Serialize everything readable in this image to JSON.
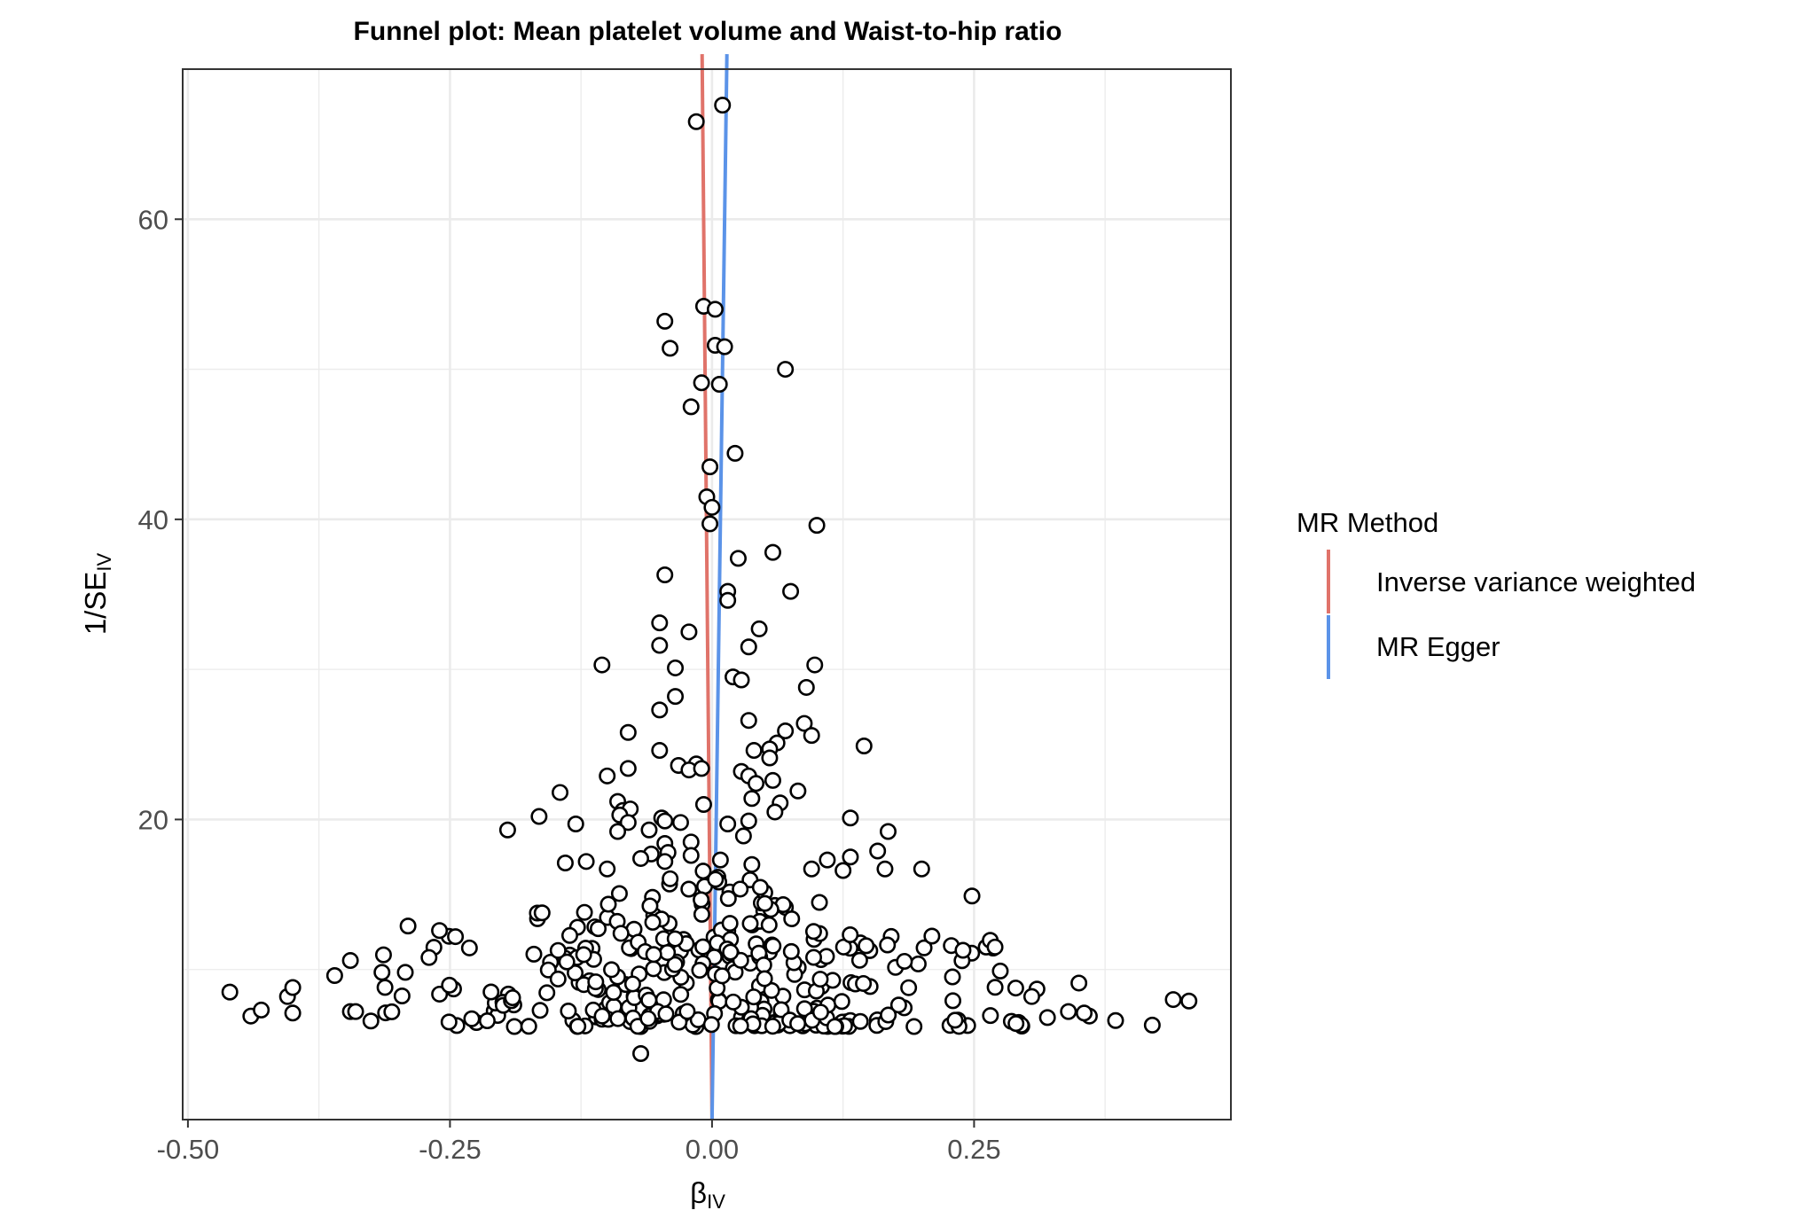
{
  "chart_data": {
    "type": "scatter",
    "title": "Funnel plot: Mean platelet volume and Waist-to-hip ratio",
    "xlabel": {
      "main": "β",
      "sub": "IV"
    },
    "ylabel": {
      "main": "1/SE",
      "sub": "IV"
    },
    "xlim": [
      -0.505,
      0.495
    ],
    "ylim": [
      0,
      70
    ],
    "x_ticks": [
      -0.5,
      -0.25,
      0,
      0.25
    ],
    "x_tick_labels": [
      "-0.50",
      "-0.25",
      "0.00",
      "0.25"
    ],
    "y_ticks": [
      20,
      40,
      60
    ],
    "y_tick_labels": [
      "20",
      "40",
      "60"
    ],
    "grid": true,
    "legend": {
      "title": "MR Method",
      "position": "right",
      "entries": [
        {
          "label": "Inverse variance weighted",
          "color": "#e0736a",
          "slope": -0.002
        },
        {
          "label": "MR Egger",
          "color": "#5b93e8",
          "slope": 0.003
        }
      ]
    },
    "points": [
      [
        0.01,
        67.6
      ],
      [
        -0.015,
        66.5
      ],
      [
        -0.008,
        54.2
      ],
      [
        0.003,
        54.0
      ],
      [
        -0.045,
        53.2
      ],
      [
        0.003,
        51.6
      ],
      [
        0.012,
        51.5
      ],
      [
        -0.04,
        51.4
      ],
      [
        0.07,
        50.0
      ],
      [
        -0.01,
        49.1
      ],
      [
        0.007,
        49.0
      ],
      [
        -0.02,
        47.5
      ],
      [
        0.022,
        44.4
      ],
      [
        -0.002,
        43.5
      ],
      [
        -0.005,
        41.5
      ],
      [
        0.0,
        40.8
      ],
      [
        -0.002,
        39.7
      ],
      [
        0.1,
        39.6
      ],
      [
        0.058,
        37.8
      ],
      [
        0.025,
        37.4
      ],
      [
        -0.045,
        36.3
      ],
      [
        0.015,
        35.2
      ],
      [
        0.015,
        34.6
      ],
      [
        0.075,
        35.2
      ],
      [
        -0.05,
        33.1
      ],
      [
        -0.022,
        32.5
      ],
      [
        0.045,
        32.7
      ],
      [
        0.035,
        31.5
      ],
      [
        -0.05,
        31.6
      ],
      [
        -0.105,
        30.3
      ],
      [
        -0.035,
        30.1
      ],
      [
        0.098,
        30.3
      ],
      [
        0.02,
        29.5
      ],
      [
        0.028,
        29.3
      ],
      [
        0.09,
        28.8
      ],
      [
        -0.035,
        28.2
      ],
      [
        -0.05,
        27.3
      ],
      [
        0.035,
        26.6
      ],
      [
        0.088,
        26.4
      ],
      [
        0.07,
        25.9
      ],
      [
        -0.08,
        25.8
      ],
      [
        0.095,
        25.6
      ],
      [
        0.062,
        25.1
      ],
      [
        0.055,
        24.7
      ],
      [
        0.145,
        24.9
      ],
      [
        0.04,
        24.6
      ],
      [
        -0.05,
        24.6
      ],
      [
        0.055,
        24.1
      ],
      [
        -0.015,
        23.7
      ],
      [
        -0.032,
        23.6
      ],
      [
        -0.08,
        23.4
      ],
      [
        -0.022,
        23.3
      ],
      [
        -0.01,
        23.4
      ],
      [
        0.028,
        23.2
      ],
      [
        0.035,
        22.9
      ],
      [
        -0.1,
        22.9
      ],
      [
        0.042,
        22.4
      ],
      [
        0.058,
        22.6
      ],
      [
        -0.145,
        21.8
      ],
      [
        0.082,
        21.9
      ],
      [
        0.038,
        21.4
      ],
      [
        -0.09,
        21.2
      ],
      [
        -0.008,
        21.0
      ],
      [
        0.065,
        21.1
      ],
      [
        -0.085,
        20.6
      ],
      [
        0.06,
        20.5
      ],
      [
        -0.078,
        20.7
      ],
      [
        -0.165,
        20.2
      ],
      [
        -0.088,
        20.3
      ],
      [
        0.132,
        20.1
      ],
      [
        -0.048,
        20.1
      ],
      [
        -0.045,
        19.9
      ],
      [
        -0.08,
        19.8
      ],
      [
        -0.03,
        19.8
      ],
      [
        0.035,
        19.9
      ],
      [
        -0.13,
        19.7
      ],
      [
        0.015,
        19.7
      ],
      [
        -0.195,
        19.3
      ],
      [
        -0.06,
        19.3
      ],
      [
        -0.09,
        19.2
      ],
      [
        0.168,
        19.2
      ],
      [
        0.03,
        18.9
      ],
      [
        -0.045,
        18.4
      ],
      [
        -0.02,
        18.5
      ],
      [
        -0.042,
        17.8
      ],
      [
        0.158,
        17.9
      ],
      [
        -0.058,
        17.7
      ],
      [
        -0.068,
        17.4
      ],
      [
        -0.02,
        17.6
      ],
      [
        0.132,
        17.5
      ],
      [
        0.11,
        17.3
      ],
      [
        0.008,
        17.3
      ],
      [
        -0.045,
        17.2
      ],
      [
        -0.12,
        17.2
      ],
      [
        -0.14,
        17.1
      ],
      [
        0.038,
        17.0
      ],
      [
        0.095,
        16.7
      ],
      [
        0.2,
        16.7
      ],
      [
        -0.1,
        16.7
      ],
      [
        0.165,
        16.7
      ],
      [
        0.125,
        16.6
      ]
    ],
    "lower_points": {
      "seed": 7,
      "count": 320,
      "x_sd": 0.13,
      "y_min": 6.2,
      "y_max": 16.8
    },
    "outliers": [
      [
        -0.46,
        8.5
      ],
      [
        -0.44,
        6.9
      ],
      [
        -0.43,
        7.3
      ],
      [
        -0.405,
        8.2
      ],
      [
        -0.4,
        8.8
      ],
      [
        -0.4,
        7.1
      ],
      [
        -0.36,
        9.6
      ],
      [
        -0.345,
        10.6
      ],
      [
        -0.345,
        7.2
      ],
      [
        -0.34,
        7.2
      ],
      [
        0.455,
        7.9
      ],
      [
        0.44,
        8.0
      ],
      [
        0.42,
        6.3
      ],
      [
        0.385,
        6.6
      ],
      [
        0.36,
        6.9
      ],
      [
        0.355,
        7.1
      ],
      [
        0.35,
        9.1
      ],
      [
        0.34,
        7.2
      ],
      [
        0.32,
        6.8
      ],
      [
        0.31,
        8.7
      ],
      [
        0.305,
        8.2
      ],
      [
        0.295,
        6.3
      ],
      [
        0.29,
        6.4
      ],
      [
        0.27,
        11.5
      ],
      [
        0.248,
        14.9
      ],
      [
        -0.068,
        4.4
      ],
      [
        0.275,
        9.9
      ],
      [
        -0.29,
        12.9
      ],
      [
        -0.27,
        10.8
      ],
      [
        -0.26,
        12.6
      ]
    ]
  }
}
